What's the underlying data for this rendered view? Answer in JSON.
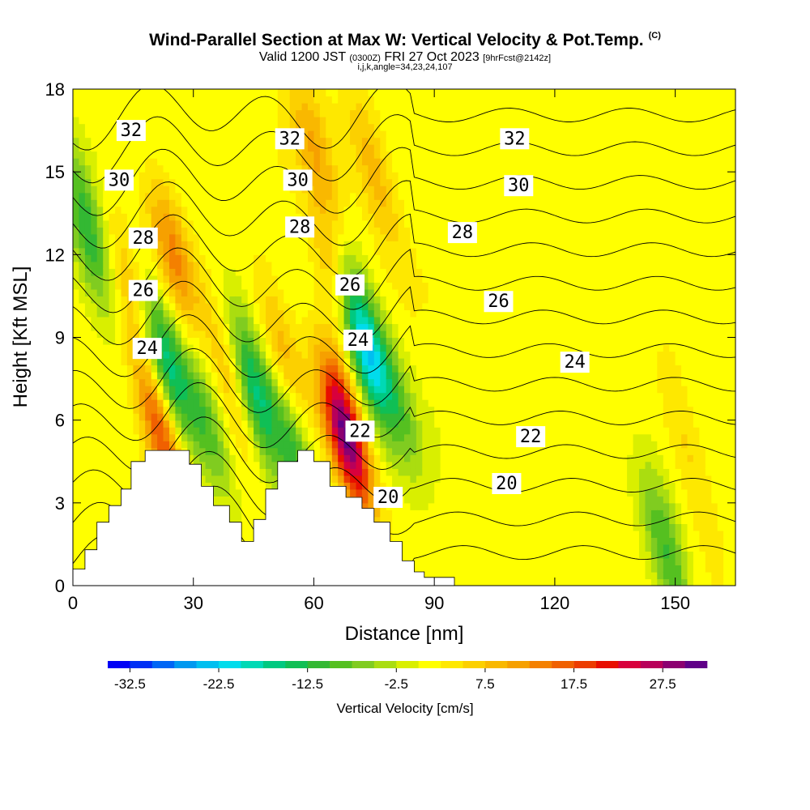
{
  "title": {
    "main": "Wind-Parallel Section at Max W: Vertical Velocity & Pot.Temp.",
    "tag": "(C)",
    "valid_main": "Valid 1200 JST",
    "valid_zulu": "(0300Z)",
    "valid_date": "FRI 27 Oct 2023",
    "forecast": "[9hrFcst@2142z]",
    "indices": "i,j,k,angle=34,23,24,107"
  },
  "chart_data": {
    "type": "heatmap",
    "xlabel": "Distance [nm]",
    "ylabel": "Height [Kft MSL]",
    "xlim": [
      0,
      165
    ],
    "ylim": [
      0,
      18
    ],
    "x_ticks": [
      0,
      30,
      60,
      90,
      120,
      150
    ],
    "y_ticks": [
      0,
      3,
      6,
      9,
      12,
      15,
      18
    ],
    "colorbar": {
      "label": "Vertical Velocity [cm/s]",
      "ticks": [
        -32.5,
        -22.5,
        -12.5,
        -2.5,
        7.5,
        17.5,
        27.5
      ],
      "tick_labels": [
        "-32.5",
        "-22.5",
        "-12.5",
        "-2.5",
        "7.5",
        "17.5",
        "27.5"
      ],
      "levels": [
        -35,
        -32.5,
        -30,
        -27.5,
        -25,
        -22.5,
        -20,
        -17.5,
        -15,
        -12.5,
        -10,
        -7.5,
        -5,
        -2.5,
        0,
        2.5,
        5,
        7.5,
        10,
        12.5,
        15,
        17.5,
        20,
        22.5,
        25,
        27.5,
        30
      ],
      "colors": [
        "#0000f5",
        "#0030f5",
        "#0066f5",
        "#0099f0",
        "#00bff0",
        "#00dcec",
        "#00d9b5",
        "#00c980",
        "#10bf55",
        "#33b833",
        "#55c020",
        "#80cc20",
        "#aadd10",
        "#d9ef00",
        "#ffff00",
        "#fee800",
        "#fcd000",
        "#f9b800",
        "#f6a000",
        "#f48000",
        "#f06000",
        "#ec3c00",
        "#e80e00",
        "#d8003c",
        "#b8005a",
        "#8c0070",
        "#600088"
      ]
    },
    "series": [
      {
        "name": "Vertical Velocity [cm/s]",
        "features": [
          {
            "x": 2,
            "y": 14,
            "value": -7
          },
          {
            "x": 5,
            "y": 12,
            "value": -8
          },
          {
            "x": 14,
            "y": 11,
            "value": 6
          },
          {
            "x": 25,
            "y": 12,
            "value": 12
          },
          {
            "x": 22,
            "y": 5.5,
            "value": 18
          },
          {
            "x": 23,
            "y": 8.2,
            "value": -18
          },
          {
            "x": 33,
            "y": 6,
            "value": -10
          },
          {
            "x": 40,
            "y": 7.5,
            "value": 9
          },
          {
            "x": 45,
            "y": 7,
            "value": -19
          },
          {
            "x": 52,
            "y": 8.5,
            "value": 9
          },
          {
            "x": 55,
            "y": 5,
            "value": -13
          },
          {
            "x": 60,
            "y": 16,
            "value": 8
          },
          {
            "x": 66,
            "y": 11,
            "value": 10
          },
          {
            "x": 68,
            "y": 5.5,
            "value": 30
          },
          {
            "x": 72,
            "y": 9,
            "value": -26
          },
          {
            "x": 75,
            "y": 15,
            "value": 8
          },
          {
            "x": 80,
            "y": 7,
            "value": -9
          },
          {
            "x": 148,
            "y": 1.2,
            "value": -12
          },
          {
            "x": 153,
            "y": 5,
            "value": 5
          }
        ]
      }
    ],
    "contours": {
      "name": "Pot.Temp.",
      "levels": [
        20,
        21,
        22,
        23,
        24,
        25,
        26,
        27,
        28,
        29,
        30,
        31,
        32,
        33
      ],
      "labels": [
        {
          "text": "32",
          "x": 14.5,
          "y": 16.5
        },
        {
          "text": "32",
          "x": 54,
          "y": 16.2
        },
        {
          "text": "32",
          "x": 110,
          "y": 16.2
        },
        {
          "text": "30",
          "x": 11.5,
          "y": 14.7
        },
        {
          "text": "30",
          "x": 56,
          "y": 14.7
        },
        {
          "text": "30",
          "x": 111,
          "y": 14.5
        },
        {
          "text": "28",
          "x": 17.5,
          "y": 12.6
        },
        {
          "text": "28",
          "x": 56.5,
          "y": 13.0
        },
        {
          "text": "28",
          "x": 97,
          "y": 12.8
        },
        {
          "text": "26",
          "x": 17.5,
          "y": 10.7
        },
        {
          "text": "26",
          "x": 69,
          "y": 10.9
        },
        {
          "text": "26",
          "x": 106,
          "y": 10.3
        },
        {
          "text": "24",
          "x": 18.5,
          "y": 8.6
        },
        {
          "text": "24",
          "x": 71,
          "y": 8.9
        },
        {
          "text": "24",
          "x": 125,
          "y": 8.1
        },
        {
          "text": "22",
          "x": 71.5,
          "y": 5.6
        },
        {
          "text": "22",
          "x": 114,
          "y": 5.4
        },
        {
          "text": "20",
          "x": 78.5,
          "y": 3.2
        },
        {
          "text": "20",
          "x": 108,
          "y": 3.7
        }
      ]
    },
    "terrain": [
      [
        0,
        0.6
      ],
      [
        3,
        1.3
      ],
      [
        6,
        2.3
      ],
      [
        9,
        2.9
      ],
      [
        12,
        3.5
      ],
      [
        14.5,
        4.5
      ],
      [
        18,
        4.9
      ],
      [
        25,
        4.9
      ],
      [
        29,
        4.4
      ],
      [
        32,
        3.6
      ],
      [
        35,
        2.9
      ],
      [
        39,
        2.3
      ],
      [
        42,
        1.6
      ],
      [
        45,
        2.4
      ],
      [
        48,
        3.5
      ],
      [
        51,
        4.5
      ],
      [
        56,
        4.9
      ],
      [
        60,
        4.5
      ],
      [
        64,
        3.6
      ],
      [
        68,
        3.2
      ],
      [
        72,
        2.8
      ],
      [
        75,
        2.3
      ],
      [
        79,
        1.6
      ],
      [
        82,
        0.9
      ],
      [
        85,
        0.5
      ],
      [
        87.5,
        0.3
      ],
      [
        95,
        0.3
      ]
    ]
  }
}
